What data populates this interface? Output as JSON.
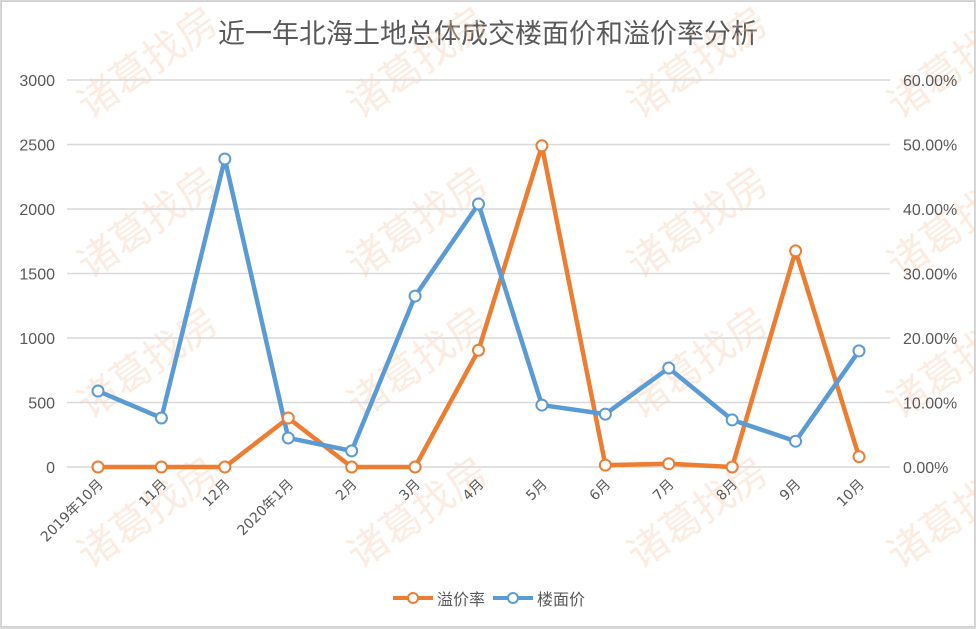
{
  "title": "近一年北海土地总体成交楼面价和溢价率分析",
  "watermark": "诸葛找房",
  "colors": {
    "premium_rate": "#ED7D31",
    "floor_price": "#5B9BD5",
    "grid": "#d9d9d9",
    "text": "#595959"
  },
  "legend": [
    {
      "label": "溢价率",
      "color": "#ED7D31"
    },
    {
      "label": "楼面价",
      "color": "#5B9BD5"
    }
  ],
  "chart_data": {
    "type": "line",
    "title": "近一年北海土地总体成交楼面价和溢价率分析",
    "categories": [
      "2019年10月",
      "11月",
      "12月",
      "2020年1月",
      "2月",
      "3月",
      "4月",
      "5月",
      "6月",
      "7月",
      "8月",
      "9月",
      "10月"
    ],
    "left_axis": {
      "ticks": [
        "0",
        "500",
        "1000",
        "1500",
        "2000",
        "2500",
        "3000"
      ],
      "ylim": [
        0,
        3000
      ]
    },
    "right_axis": {
      "ticks": [
        "0.00%",
        "10.00%",
        "20.00%",
        "30.00%",
        "40.00%",
        "50.00%",
        "60.00%"
      ],
      "ylim": [
        0,
        0.6
      ]
    },
    "series": [
      {
        "name": "溢价率",
        "axis": "right",
        "values": [
          0,
          0,
          0,
          0.076,
          0,
          0,
          0.181,
          0.498,
          0.003,
          0.005,
          0,
          0.335,
          0.016
        ]
      },
      {
        "name": "楼面价",
        "axis": "left",
        "values": [
          589,
          380,
          2388,
          225,
          125,
          1325,
          2039,
          480,
          410,
          767,
          365,
          200,
          900
        ]
      }
    ],
    "grid": true,
    "legend_position": "bottom"
  }
}
